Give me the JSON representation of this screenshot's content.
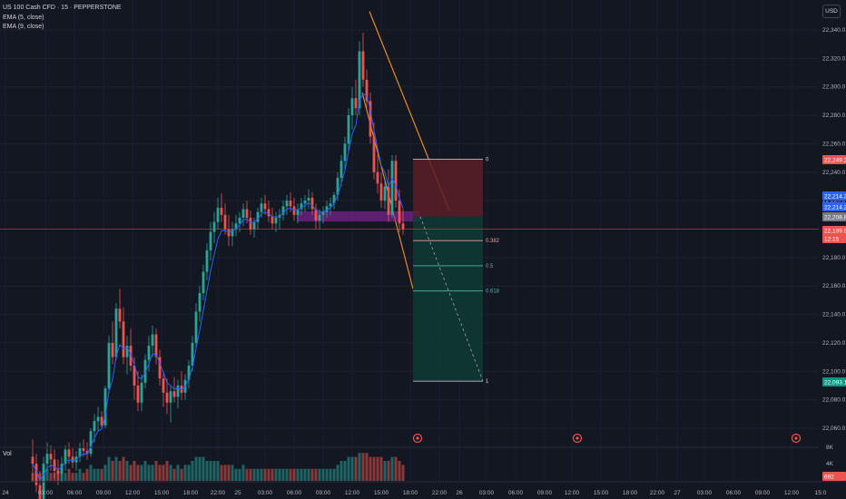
{
  "legend": {
    "symbol": "US 100 Cash CFD · 15 · PEPPERSTONE",
    "ema1": "EMA (5, close)",
    "ema2": "EMA (9, close)"
  },
  "currency_button": "USD",
  "volume_label": "Vol",
  "colors": {
    "background": "#131722",
    "up": "#26a69a",
    "down": "#ef5350",
    "ema": "#2962ff",
    "channel": "#f7931a",
    "zone": "#9c27b0",
    "stop_zone": "#b2283244",
    "target_zone": "#0d9488"
  },
  "chart_data": {
    "type": "candlestick",
    "symbol": "US 100 Cash CFD",
    "timeframe": "15",
    "price_axis": {
      "ticks": [
        "22,340.0",
        "22,320.0",
        "22,300.0",
        "22,280.0",
        "22,260.0",
        "22,240.0",
        "22,220.0",
        "22,200.0",
        "22,180.0",
        "22,160.0",
        "22,140.0",
        "22,120.0",
        "22,100.0",
        "22,080.0",
        "22,060.0"
      ],
      "ylim": [
        22050,
        22350
      ]
    },
    "time_axis": {
      "ticks": [
        "24",
        "03:00",
        "06:00",
        "09:00",
        "12:00",
        "15:00",
        "18:00",
        "22:00",
        "25",
        "03:00",
        "06:00",
        "09:00",
        "12:00",
        "15:00",
        "18:00",
        "22:00",
        "26",
        "03:00",
        "06:00",
        "09:00",
        "12:00",
        "15:00",
        "18:00",
        "22:00",
        "27",
        "03:00",
        "06:00",
        "09:00",
        "12:00",
        "15:0"
      ]
    },
    "volume_axis": {
      "ticks": [
        "8K",
        "4K"
      ]
    },
    "price_tags": [
      {
        "value": "22,249.2",
        "kind": "stop"
      },
      {
        "value": "22,214.2",
        "kind": "ema"
      },
      {
        "value": "22,214.2",
        "kind": "ema"
      },
      {
        "value": "22,208.8",
        "kind": "grey"
      },
      {
        "value": "22,199.9",
        "kind": "last"
      },
      {
        "value": "12:15",
        "kind": "countdown"
      },
      {
        "value": "22,093.1",
        "kind": "target"
      },
      {
        "value": "692",
        "kind": "volume"
      }
    ],
    "fib_levels": [
      {
        "label": "0",
        "price": 22249.2
      },
      {
        "label": "0.382",
        "price": 22191.9
      },
      {
        "label": "0.5",
        "price": 22174.2
      },
      {
        "label": "0.618",
        "price": 22156.5
      },
      {
        "label": "1",
        "price": 22093.1
      }
    ],
    "position": {
      "entry": 22208.8,
      "stop": 22249.2,
      "target": 22093.1
    },
    "zone": {
      "top": 22212.5,
      "bottom": 22205.3
    },
    "current_price": 22199.9,
    "channel": {
      "upper": [
        [
          0.0,
          22353
        ],
        [
          1.0,
          22213
        ]
      ],
      "lower": [
        [
          0.0,
          22272
        ],
        [
          1.0,
          22158
        ]
      ]
    },
    "candles": [
      [
        22040,
        22052,
        22022,
        22035
      ],
      [
        22035,
        22042,
        22015,
        22020
      ],
      [
        22020,
        22030,
        22005,
        22010
      ],
      [
        22010,
        22040,
        22000,
        22035
      ],
      [
        22035,
        22050,
        22030,
        22042
      ],
      [
        22042,
        22048,
        22030,
        22038
      ],
      [
        22038,
        22045,
        22025,
        22030
      ],
      [
        22030,
        22038,
        22020,
        22028
      ],
      [
        22028,
        22040,
        22022,
        22035
      ],
      [
        22035,
        22048,
        22030,
        22045
      ],
      [
        22045,
        22050,
        22035,
        22040
      ],
      [
        22040,
        22046,
        22032,
        22036
      ],
      [
        22036,
        22044,
        22030,
        22040
      ],
      [
        22040,
        22050,
        22036,
        22046
      ],
      [
        22046,
        22052,
        22040,
        22044
      ],
      [
        22044,
        22050,
        22038,
        22042
      ],
      [
        22042,
        22060,
        22040,
        22058
      ],
      [
        22058,
        22070,
        22050,
        22065
      ],
      [
        22065,
        22075,
        22058,
        22068
      ],
      [
        22068,
        22072,
        22060,
        22062
      ],
      [
        22062,
        22090,
        22060,
        22088
      ],
      [
        22088,
        22125,
        22085,
        22120
      ],
      [
        22120,
        22135,
        22105,
        22110
      ],
      [
        22110,
        22148,
        22108,
        22144
      ],
      [
        22144,
        22158,
        22130,
        22135
      ],
      [
        22135,
        22145,
        22105,
        22110
      ],
      [
        22110,
        22125,
        22098,
        22118
      ],
      [
        22118,
        22130,
        22100,
        22104
      ],
      [
        22104,
        22110,
        22080,
        22090
      ],
      [
        22090,
        22100,
        22072,
        22078
      ],
      [
        22078,
        22098,
        22072,
        22092
      ],
      [
        22092,
        22112,
        22088,
        22108
      ],
      [
        22108,
        22125,
        22100,
        22118
      ],
      [
        22118,
        22132,
        22110,
        22126
      ],
      [
        22126,
        22130,
        22105,
        22110
      ],
      [
        22110,
        22115,
        22090,
        22095
      ],
      [
        22095,
        22100,
        22075,
        22085
      ],
      [
        22085,
        22095,
        22070,
        22078
      ],
      [
        22078,
        22090,
        22064,
        22086
      ],
      [
        22086,
        22096,
        22078,
        22082
      ],
      [
        22082,
        22094,
        22074,
        22090
      ],
      [
        22090,
        22100,
        22080,
        22085
      ],
      [
        22085,
        22098,
        22080,
        22094
      ],
      [
        22094,
        22108,
        22088,
        22104
      ],
      [
        22104,
        22125,
        22100,
        22120
      ],
      [
        22120,
        22148,
        22116,
        22142
      ],
      [
        22142,
        22160,
        22135,
        22155
      ],
      [
        22155,
        22175,
        22150,
        22170
      ],
      [
        22170,
        22190,
        22164,
        22185
      ],
      [
        22185,
        22205,
        22178,
        22198
      ],
      [
        22198,
        22212,
        22190,
        22205
      ],
      [
        22205,
        22222,
        22200,
        22215
      ],
      [
        22215,
        22225,
        22205,
        22210
      ],
      [
        22210,
        22218,
        22196,
        22200
      ],
      [
        22200,
        22210,
        22188,
        22195
      ],
      [
        22195,
        22205,
        22188,
        22200
      ],
      [
        22200,
        22210,
        22195,
        22204
      ],
      [
        22204,
        22212,
        22198,
        22208
      ],
      [
        22208,
        22218,
        22202,
        22214
      ],
      [
        22214,
        22220,
        22204,
        22208
      ],
      [
        22208,
        22213,
        22196,
        22200
      ],
      [
        22200,
        22208,
        22194,
        22205
      ],
      [
        22205,
        22215,
        22200,
        22212
      ],
      [
        22212,
        22222,
        22208,
        22218
      ],
      [
        22218,
        22224,
        22210,
        22214
      ],
      [
        22214,
        22220,
        22205,
        22209
      ],
      [
        22209,
        22215,
        22200,
        22204
      ],
      [
        22204,
        22212,
        22198,
        22208
      ],
      [
        22208,
        22214,
        22200,
        22210
      ],
      [
        22210,
        22220,
        22206,
        22216
      ],
      [
        22216,
        22224,
        22210,
        22220
      ],
      [
        22220,
        22226,
        22212,
        22216
      ],
      [
        22216,
        22222,
        22206,
        22210
      ],
      [
        22210,
        22218,
        22204,
        22214
      ],
      [
        22214,
        22222,
        22210,
        22218
      ],
      [
        22218,
        22224,
        22212,
        22220
      ],
      [
        22220,
        22228,
        22214,
        22222
      ],
      [
        22222,
        22226,
        22210,
        22214
      ],
      [
        22214,
        22218,
        22200,
        22206
      ],
      [
        22206,
        22214,
        22200,
        22210
      ],
      [
        22210,
        22216,
        22204,
        22212
      ],
      [
        22212,
        22220,
        22208,
        22216
      ],
      [
        22216,
        22222,
        22210,
        22218
      ],
      [
        22218,
        22226,
        22214,
        22224
      ],
      [
        22224,
        22240,
        22220,
        22236
      ],
      [
        22236,
        22252,
        22230,
        22248
      ],
      [
        22248,
        22265,
        22242,
        22260
      ],
      [
        22260,
        22285,
        22255,
        22280
      ],
      [
        22280,
        22300,
        22270,
        22292
      ],
      [
        22292,
        22305,
        22280,
        22285
      ],
      [
        22285,
        22332,
        22280,
        22325
      ],
      [
        22325,
        22338,
        22300,
        22305
      ],
      [
        22305,
        22312,
        22285,
        22290
      ],
      [
        22290,
        22296,
        22260,
        22265
      ],
      [
        22265,
        22275,
        22235,
        22240
      ],
      [
        22240,
        22252,
        22225,
        22232
      ],
      [
        22232,
        22240,
        22215,
        22220
      ],
      [
        22220,
        22235,
        22214,
        22230
      ],
      [
        22230,
        22242,
        22205,
        22210
      ],
      [
        22210,
        22252,
        22208,
        22248
      ],
      [
        22248,
        22252,
        22215,
        22220
      ],
      [
        22220,
        22228,
        22198,
        22204
      ],
      [
        22204,
        22214,
        22196,
        22200
      ]
    ],
    "volume": [
      2,
      3,
      2,
      2,
      3,
      2,
      2,
      3,
      2,
      2,
      3,
      2,
      2,
      3,
      2,
      3,
      4,
      3,
      3,
      3,
      4,
      6,
      5,
      6,
      5,
      6,
      5,
      4,
      5,
      4,
      4,
      5,
      4,
      4,
      5,
      4,
      4,
      5,
      4,
      3,
      4,
      3,
      4,
      4,
      5,
      6,
      6,
      6,
      5,
      5,
      5,
      5,
      4,
      4,
      4,
      4,
      3,
      3,
      4,
      3,
      3,
      3,
      3,
      3,
      3,
      3,
      3,
      3,
      3,
      3,
      3,
      3,
      3,
      3,
      3,
      3,
      3,
      3,
      3,
      3,
      3,
      3,
      3,
      3,
      4,
      5,
      5,
      6,
      6,
      6,
      7,
      7,
      7,
      6,
      6,
      6,
      6,
      5,
      5,
      6,
      6,
      5,
      4
    ]
  }
}
